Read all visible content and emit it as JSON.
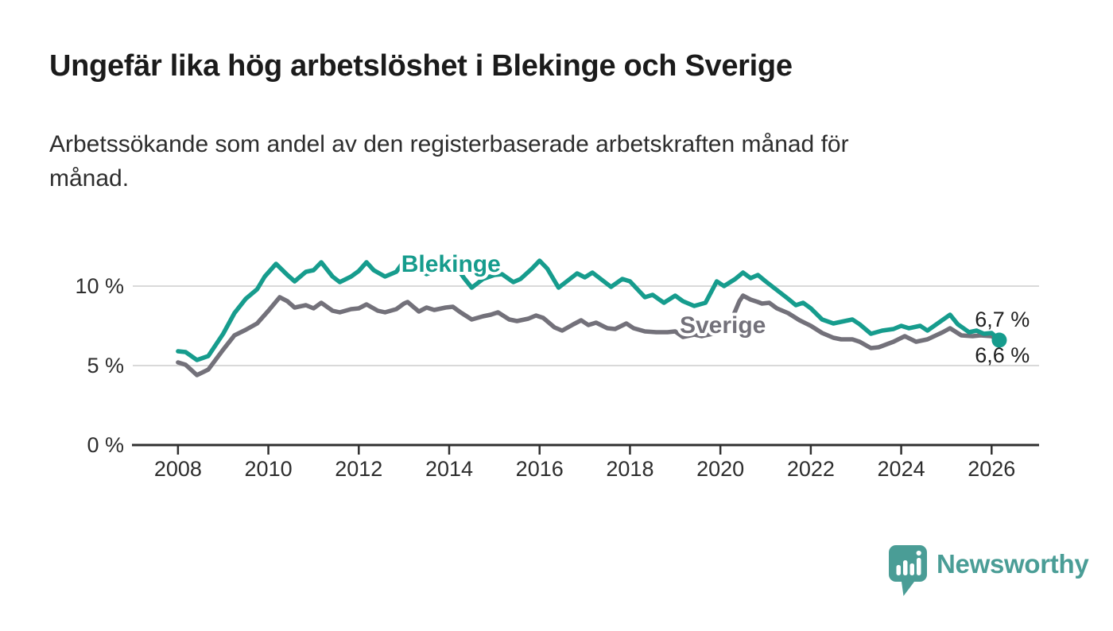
{
  "title": "Ungefär lika hög arbetslöshet i Blekinge och Sverige",
  "subtitle_line1": "Arbetssökande som andel av den registerbaserade arbetskraften månad för",
  "subtitle_line2": "månad.",
  "branding": {
    "logo_text": "Newsworthy",
    "logo_color": "#4a9d96"
  },
  "chart_data": {
    "type": "line",
    "unit": "%",
    "title": "Ungefär lika hög arbetslöshet i Blekinge och Sverige",
    "xlabel": "",
    "ylabel": "",
    "x": {
      "range_years": [
        2007,
        2027.05
      ],
      "ticks": [
        "2008",
        "2010",
        "2012",
        "2014",
        "2016",
        "2018",
        "2020",
        "2022",
        "2024",
        "2026"
      ],
      "tick_values": [
        2008,
        2010,
        2012,
        2014,
        2016,
        2018,
        2020,
        2022,
        2024,
        2026
      ]
    },
    "y": {
      "range": [
        0,
        12.5
      ],
      "ticks": [
        {
          "v": 0,
          "label": "0 %"
        },
        {
          "v": 5,
          "label": "5 %"
        },
        {
          "v": 10,
          "label": "10 %"
        }
      ],
      "gridlines": [
        5,
        10
      ],
      "grid_color": "#d9d9d9",
      "axis_color": "#303030",
      "text_color": "#2d2d2d"
    },
    "legend_position": "inline-labels",
    "value_label_color": "#1f1f1f",
    "series": [
      {
        "name": "Sverige",
        "color": "#73717a",
        "line_width": 5.5,
        "inline_label": {
          "text": "Sverige",
          "t": 2019.1,
          "v": 7.05
        },
        "end_value_label": {
          "text": "6,7 %",
          "t": 2025.63,
          "v": 7.45
        },
        "end_dot": false,
        "last_value": 6.7,
        "points": [
          [
            2008.0,
            5.2
          ],
          [
            2008.17,
            5.05
          ],
          [
            2008.42,
            4.4
          ],
          [
            2008.67,
            4.75
          ],
          [
            2009.0,
            6.0
          ],
          [
            2009.25,
            6.9
          ],
          [
            2009.5,
            7.25
          ],
          [
            2009.75,
            7.65
          ],
          [
            2010.0,
            8.45
          ],
          [
            2010.25,
            9.3
          ],
          [
            2010.42,
            9.05
          ],
          [
            2010.58,
            8.65
          ],
          [
            2010.83,
            8.8
          ],
          [
            2011.0,
            8.6
          ],
          [
            2011.17,
            8.95
          ],
          [
            2011.42,
            8.45
          ],
          [
            2011.58,
            8.35
          ],
          [
            2011.83,
            8.55
          ],
          [
            2012.0,
            8.6
          ],
          [
            2012.17,
            8.85
          ],
          [
            2012.42,
            8.45
          ],
          [
            2012.58,
            8.35
          ],
          [
            2012.83,
            8.55
          ],
          [
            2013.0,
            8.9
          ],
          [
            2013.08,
            9.0
          ],
          [
            2013.33,
            8.4
          ],
          [
            2013.5,
            8.65
          ],
          [
            2013.67,
            8.5
          ],
          [
            2013.92,
            8.65
          ],
          [
            2014.08,
            8.7
          ],
          [
            2014.25,
            8.35
          ],
          [
            2014.5,
            7.9
          ],
          [
            2014.75,
            8.1
          ],
          [
            2014.92,
            8.2
          ],
          [
            2015.08,
            8.35
          ],
          [
            2015.33,
            7.9
          ],
          [
            2015.5,
            7.8
          ],
          [
            2015.75,
            7.95
          ],
          [
            2015.92,
            8.15
          ],
          [
            2016.08,
            8.0
          ],
          [
            2016.33,
            7.4
          ],
          [
            2016.5,
            7.2
          ],
          [
            2016.75,
            7.6
          ],
          [
            2016.92,
            7.85
          ],
          [
            2017.08,
            7.55
          ],
          [
            2017.25,
            7.7
          ],
          [
            2017.5,
            7.35
          ],
          [
            2017.67,
            7.3
          ],
          [
            2017.92,
            7.65
          ],
          [
            2018.08,
            7.35
          ],
          [
            2018.33,
            7.15
          ],
          [
            2018.58,
            7.1
          ],
          [
            2018.83,
            7.1
          ],
          [
            2019.0,
            7.15
          ],
          [
            2019.17,
            6.8
          ],
          [
            2019.42,
            6.95
          ],
          [
            2019.58,
            6.85
          ],
          [
            2019.83,
            7.0
          ],
          [
            2020.0,
            7.1
          ],
          [
            2020.17,
            7.35
          ],
          [
            2020.42,
            9.05
          ],
          [
            2020.5,
            9.4
          ],
          [
            2020.67,
            9.15
          ],
          [
            2020.83,
            9.0
          ],
          [
            2020.92,
            8.9
          ],
          [
            2021.08,
            8.95
          ],
          [
            2021.25,
            8.6
          ],
          [
            2021.5,
            8.3
          ],
          [
            2021.75,
            7.85
          ],
          [
            2022.0,
            7.5
          ],
          [
            2022.25,
            7.05
          ],
          [
            2022.5,
            6.75
          ],
          [
            2022.67,
            6.65
          ],
          [
            2022.92,
            6.65
          ],
          [
            2023.08,
            6.5
          ],
          [
            2023.33,
            6.1
          ],
          [
            2023.5,
            6.15
          ],
          [
            2023.83,
            6.5
          ],
          [
            2024.08,
            6.85
          ],
          [
            2024.33,
            6.5
          ],
          [
            2024.58,
            6.65
          ],
          [
            2024.92,
            7.1
          ],
          [
            2025.08,
            7.35
          ],
          [
            2025.33,
            6.9
          ],
          [
            2025.58,
            6.85
          ],
          [
            2025.75,
            6.9
          ],
          [
            2026.0,
            6.85
          ],
          [
            2026.08,
            6.7
          ]
        ]
      },
      {
        "name": "Blekinge",
        "color": "#169c8d",
        "line_width": 5.5,
        "inline_label": {
          "text": "Blekinge",
          "t": 2012.94,
          "v": 10.9
        },
        "end_value_label": {
          "text": "6,6 %",
          "t": 2025.63,
          "v": 5.2
        },
        "end_dot": true,
        "last_value": 6.6,
        "points": [
          [
            2008.0,
            5.9
          ],
          [
            2008.17,
            5.85
          ],
          [
            2008.42,
            5.35
          ],
          [
            2008.67,
            5.6
          ],
          [
            2009.0,
            7.0
          ],
          [
            2009.25,
            8.3
          ],
          [
            2009.5,
            9.2
          ],
          [
            2009.75,
            9.8
          ],
          [
            2009.92,
            10.6
          ],
          [
            2010.17,
            11.4
          ],
          [
            2010.42,
            10.7
          ],
          [
            2010.58,
            10.3
          ],
          [
            2010.83,
            10.9
          ],
          [
            2011.0,
            11.0
          ],
          [
            2011.17,
            11.5
          ],
          [
            2011.42,
            10.6
          ],
          [
            2011.58,
            10.25
          ],
          [
            2011.83,
            10.6
          ],
          [
            2012.0,
            10.95
          ],
          [
            2012.17,
            11.5
          ],
          [
            2012.33,
            11.0
          ],
          [
            2012.58,
            10.6
          ],
          [
            2012.83,
            10.9
          ],
          [
            2013.08,
            11.9
          ],
          [
            2013.33,
            11.1
          ],
          [
            2013.5,
            10.75
          ],
          [
            2013.75,
            11.05
          ],
          [
            2014.0,
            11.25
          ],
          [
            2014.17,
            11.15
          ],
          [
            2014.33,
            10.5
          ],
          [
            2014.5,
            9.9
          ],
          [
            2014.75,
            10.45
          ],
          [
            2015.0,
            10.7
          ],
          [
            2015.17,
            10.75
          ],
          [
            2015.42,
            10.25
          ],
          [
            2015.58,
            10.45
          ],
          [
            2015.83,
            11.1
          ],
          [
            2016.0,
            11.6
          ],
          [
            2016.17,
            11.1
          ],
          [
            2016.42,
            9.9
          ],
          [
            2016.58,
            10.25
          ],
          [
            2016.83,
            10.8
          ],
          [
            2017.0,
            10.55
          ],
          [
            2017.17,
            10.85
          ],
          [
            2017.42,
            10.3
          ],
          [
            2017.58,
            9.95
          ],
          [
            2017.83,
            10.45
          ],
          [
            2018.0,
            10.3
          ],
          [
            2018.33,
            9.3
          ],
          [
            2018.5,
            9.45
          ],
          [
            2018.75,
            8.95
          ],
          [
            2019.0,
            9.4
          ],
          [
            2019.17,
            9.05
          ],
          [
            2019.42,
            8.75
          ],
          [
            2019.67,
            8.95
          ],
          [
            2019.92,
            10.3
          ],
          [
            2020.08,
            10.0
          ],
          [
            2020.33,
            10.45
          ],
          [
            2020.5,
            10.85
          ],
          [
            2020.67,
            10.5
          ],
          [
            2020.83,
            10.7
          ],
          [
            2021.0,
            10.3
          ],
          [
            2021.25,
            9.75
          ],
          [
            2021.5,
            9.2
          ],
          [
            2021.67,
            8.8
          ],
          [
            2021.83,
            8.95
          ],
          [
            2022.0,
            8.6
          ],
          [
            2022.25,
            7.9
          ],
          [
            2022.5,
            7.65
          ],
          [
            2022.75,
            7.8
          ],
          [
            2022.92,
            7.9
          ],
          [
            2023.08,
            7.6
          ],
          [
            2023.33,
            7.0
          ],
          [
            2023.58,
            7.2
          ],
          [
            2023.83,
            7.3
          ],
          [
            2024.0,
            7.5
          ],
          [
            2024.17,
            7.35
          ],
          [
            2024.42,
            7.5
          ],
          [
            2024.58,
            7.2
          ],
          [
            2024.83,
            7.7
          ],
          [
            2025.08,
            8.2
          ],
          [
            2025.25,
            7.6
          ],
          [
            2025.5,
            7.1
          ],
          [
            2025.67,
            7.2
          ],
          [
            2025.83,
            7.0
          ],
          [
            2026.0,
            7.05
          ],
          [
            2026.08,
            6.85
          ],
          [
            2026.17,
            6.6
          ]
        ]
      }
    ]
  }
}
